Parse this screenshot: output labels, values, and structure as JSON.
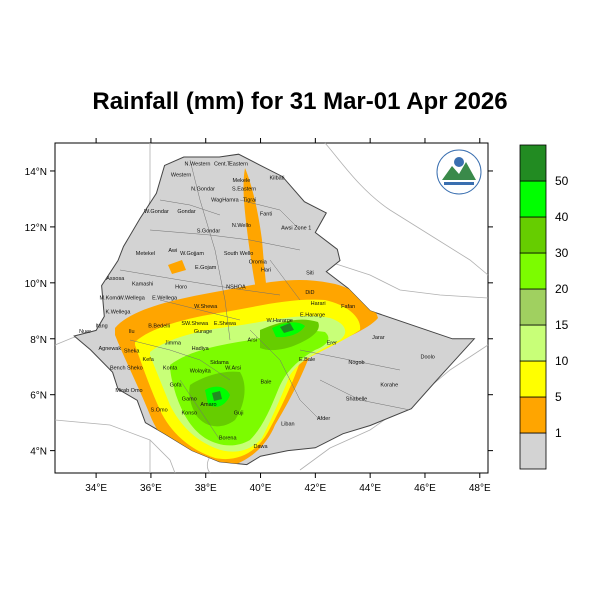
{
  "title": "Rainfall (mm) for 31 Mar-01 Apr 2026",
  "map": {
    "lon_ticks": [
      "34°E",
      "36°E",
      "38°E",
      "40°E",
      "42°E",
      "44°E",
      "46°E",
      "48°E"
    ],
    "lat_ticks": [
      "14°N",
      "12°N",
      "10°N",
      "8°N",
      "6°N",
      "4°N"
    ],
    "lon_range": [
      32.5,
      48.3
    ],
    "lat_range": [
      3.2,
      15.0
    ]
  },
  "legend": {
    "labels": [
      "1",
      "5",
      "10",
      "15",
      "20",
      "30",
      "40",
      "50"
    ],
    "colors": [
      "#d3d3d3",
      "#ffa500",
      "#ffff00",
      "#c8ff78",
      "#a0d060",
      "#7cfc00",
      "#66cd00",
      "#00ff00",
      "#228b22"
    ]
  },
  "regions": [
    {
      "name": "N.Western",
      "lon": 37.7,
      "lat": 14.2
    },
    {
      "name": "Cent.T",
      "lon": 38.6,
      "lat": 14.2
    },
    {
      "name": "Eastern",
      "lon": 39.2,
      "lat": 14.2
    },
    {
      "name": "Western",
      "lon": 37.1,
      "lat": 13.8
    },
    {
      "name": "Mekele",
      "lon": 39.3,
      "lat": 13.6
    },
    {
      "name": "S.Eastern",
      "lon": 39.4,
      "lat": 13.3
    },
    {
      "name": "Kilbati",
      "lon": 40.6,
      "lat": 13.7
    },
    {
      "name": "N.Gondar",
      "lon": 37.9,
      "lat": 13.3
    },
    {
      "name": "WagHamra",
      "lon": 38.7,
      "lat": 12.9
    },
    {
      "name": "Tigrai",
      "lon": 39.6,
      "lat": 12.9
    },
    {
      "name": "W.Gondar",
      "lon": 36.2,
      "lat": 12.5
    },
    {
      "name": "Gondar",
      "lon": 37.3,
      "lat": 12.5
    },
    {
      "name": "Fanti",
      "lon": 40.2,
      "lat": 12.4
    },
    {
      "name": "N.Wello",
      "lon": 39.3,
      "lat": 12.0
    },
    {
      "name": "Awsi Zone 1",
      "lon": 41.3,
      "lat": 11.9
    },
    {
      "name": "S.Gondar",
      "lon": 38.1,
      "lat": 11.8
    },
    {
      "name": "Metekel",
      "lon": 35.8,
      "lat": 11.0
    },
    {
      "name": "Awi",
      "lon": 36.8,
      "lat": 11.1
    },
    {
      "name": "W.Gojjam",
      "lon": 37.5,
      "lat": 11.0
    },
    {
      "name": "South Wello",
      "lon": 39.2,
      "lat": 11.0
    },
    {
      "name": "E.Gojam",
      "lon": 38.0,
      "lat": 10.5
    },
    {
      "name": "Oromia",
      "lon": 39.9,
      "lat": 10.7
    },
    {
      "name": "Hari",
      "lon": 40.2,
      "lat": 10.4
    },
    {
      "name": "Siti",
      "lon": 41.8,
      "lat": 10.3
    },
    {
      "name": "Assosa",
      "lon": 34.7,
      "lat": 10.1
    },
    {
      "name": "Kamashi",
      "lon": 35.7,
      "lat": 9.9
    },
    {
      "name": "Horo",
      "lon": 37.1,
      "lat": 9.8
    },
    {
      "name": "NSHOA",
      "lon": 39.1,
      "lat": 9.8
    },
    {
      "name": "DiD",
      "lon": 41.8,
      "lat": 9.6
    },
    {
      "name": "M.Komo",
      "lon": 34.5,
      "lat": 9.4
    },
    {
      "name": "W.Wellega",
      "lon": 35.3,
      "lat": 9.4
    },
    {
      "name": "E.Wellega",
      "lon": 36.5,
      "lat": 9.4
    },
    {
      "name": "W.Shewa",
      "lon": 38.0,
      "lat": 9.1
    },
    {
      "name": "Harari",
      "lon": 42.1,
      "lat": 9.2
    },
    {
      "name": "Fafan",
      "lon": 43.2,
      "lat": 9.1
    },
    {
      "name": "K.Wellega",
      "lon": 34.8,
      "lat": 8.9
    },
    {
      "name": "W.Hararge",
      "lon": 40.7,
      "lat": 8.6
    },
    {
      "name": "E.Hararge",
      "lon": 41.9,
      "lat": 8.8
    },
    {
      "name": "B.Bedelli",
      "lon": 36.3,
      "lat": 8.4
    },
    {
      "name": "SW.Shewa",
      "lon": 37.6,
      "lat": 8.5
    },
    {
      "name": "E.Shewa",
      "lon": 38.7,
      "lat": 8.5
    },
    {
      "name": "Nuer",
      "lon": 33.6,
      "lat": 8.2
    },
    {
      "name": "Itang",
      "lon": 34.2,
      "lat": 8.4
    },
    {
      "name": "Ilu",
      "lon": 35.3,
      "lat": 8.2
    },
    {
      "name": "Jarar",
      "lon": 44.3,
      "lat": 8.0
    },
    {
      "name": "Gurage",
      "lon": 37.9,
      "lat": 8.2
    },
    {
      "name": "Arsi",
      "lon": 39.7,
      "lat": 7.9
    },
    {
      "name": "Erer",
      "lon": 42.6,
      "lat": 7.8
    },
    {
      "name": "Jimma",
      "lon": 36.8,
      "lat": 7.8
    },
    {
      "name": "Agnewak",
      "lon": 34.5,
      "lat": 7.6
    },
    {
      "name": "Sheka",
      "lon": 35.3,
      "lat": 7.5
    },
    {
      "name": "Hadiya",
      "lon": 37.8,
      "lat": 7.6
    },
    {
      "name": "Kefa",
      "lon": 35.9,
      "lat": 7.2
    },
    {
      "name": "Sidama",
      "lon": 38.5,
      "lat": 7.1
    },
    {
      "name": "E.Bale",
      "lon": 41.7,
      "lat": 7.2
    },
    {
      "name": "Nogob",
      "lon": 43.5,
      "lat": 7.1
    },
    {
      "name": "Doolo",
      "lon": 46.1,
      "lat": 7.3
    },
    {
      "name": "Bench Sheko",
      "lon": 35.1,
      "lat": 6.9
    },
    {
      "name": "Konta",
      "lon": 36.7,
      "lat": 6.9
    },
    {
      "name": "Wolayita",
      "lon": 37.8,
      "lat": 6.8
    },
    {
      "name": "W.Arsi",
      "lon": 39.0,
      "lat": 6.9
    },
    {
      "name": "Bale",
      "lon": 40.2,
      "lat": 6.4
    },
    {
      "name": "Korahe",
      "lon": 44.7,
      "lat": 6.3
    },
    {
      "name": "Gofa",
      "lon": 36.9,
      "lat": 6.3
    },
    {
      "name": "Mirab Omo",
      "lon": 35.2,
      "lat": 6.1
    },
    {
      "name": "Gamo",
      "lon": 37.4,
      "lat": 5.8
    },
    {
      "name": "Shabelle",
      "lon": 43.5,
      "lat": 5.8
    },
    {
      "name": "Amaro",
      "lon": 38.1,
      "lat": 5.6
    },
    {
      "name": "Guji",
      "lon": 39.2,
      "lat": 5.3
    },
    {
      "name": "S.Omo",
      "lon": 36.3,
      "lat": 5.4
    },
    {
      "name": "Konso",
      "lon": 37.4,
      "lat": 5.3
    },
    {
      "name": "Liban",
      "lon": 41.0,
      "lat": 4.9
    },
    {
      "name": "Afder",
      "lon": 42.3,
      "lat": 5.1
    },
    {
      "name": "Borena",
      "lon": 38.8,
      "lat": 4.4
    },
    {
      "name": "Dawa",
      "lon": 40.0,
      "lat": 4.1
    }
  ]
}
